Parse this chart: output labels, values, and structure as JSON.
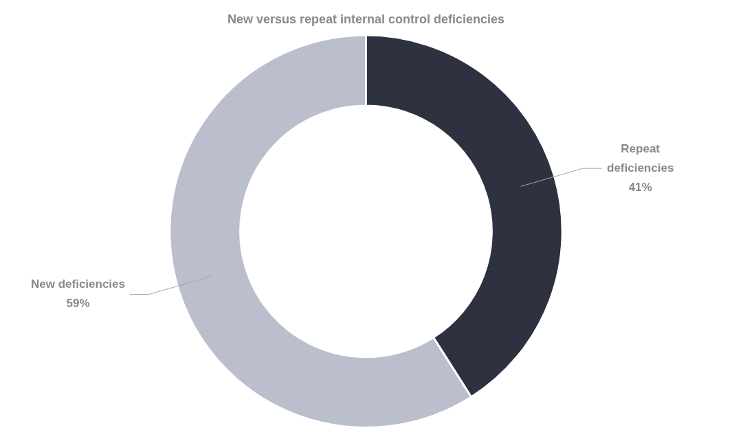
{
  "chart_data": {
    "type": "donut",
    "title": "New versus repeat internal control deficiencies",
    "categories": [
      "Repeat deficiencies",
      "New deficiencies"
    ],
    "values": [
      41,
      59
    ],
    "colors": [
      "#2e3140",
      "#bbbecd"
    ],
    "value_labels": [
      "41%",
      "59%"
    ],
    "legend": false
  }
}
